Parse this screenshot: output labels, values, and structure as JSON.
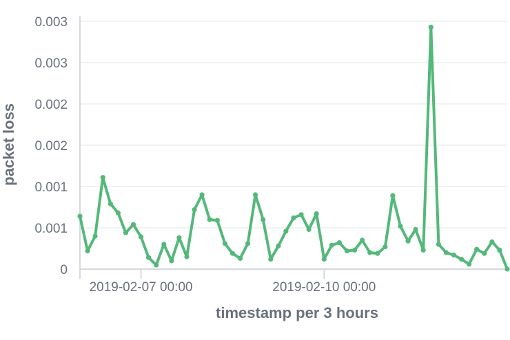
{
  "chart_data": {
    "type": "line",
    "xlabel": "timestamp per 3 hours",
    "ylabel": "packet loss",
    "y_ticks": [
      {
        "value": 0,
        "label": "0"
      },
      {
        "value": 0.0005,
        "label": "0.001"
      },
      {
        "value": 0.001,
        "label": "0.001"
      },
      {
        "value": 0.0015,
        "label": "0.002"
      },
      {
        "value": 0.002,
        "label": "0.002"
      },
      {
        "value": 0.0025,
        "label": "0.003"
      },
      {
        "value": 0.003,
        "label": "0.003"
      }
    ],
    "ylim": [
      0,
      0.003
    ],
    "x_ticks": [
      {
        "value": "2019-02-07 00:00",
        "label": "2019-02-07 00:00"
      },
      {
        "value": "2019-02-10 00:00",
        "label": "2019-02-10 00:00"
      }
    ],
    "xlim": [
      "2019-02-06 00:00",
      "2019-02-13 00:00"
    ],
    "grid": "horizontal",
    "colors": {
      "series": "#54b87a"
    },
    "series": [
      {
        "x": [
          "2019-02-06 00:00",
          "2019-02-06 03:00",
          "2019-02-06 06:00",
          "2019-02-06 09:00",
          "2019-02-06 12:00",
          "2019-02-06 15:00",
          "2019-02-06 18:00",
          "2019-02-06 21:00",
          "2019-02-07 00:00",
          "2019-02-07 03:00",
          "2019-02-07 06:00",
          "2019-02-07 09:00",
          "2019-02-07 12:00",
          "2019-02-07 15:00",
          "2019-02-07 18:00",
          "2019-02-07 21:00",
          "2019-02-08 00:00",
          "2019-02-08 03:00",
          "2019-02-08 06:00",
          "2019-02-08 09:00",
          "2019-02-08 12:00",
          "2019-02-08 15:00",
          "2019-02-08 18:00",
          "2019-02-08 21:00",
          "2019-02-09 00:00",
          "2019-02-09 03:00",
          "2019-02-09 06:00",
          "2019-02-09 09:00",
          "2019-02-09 12:00",
          "2019-02-09 15:00",
          "2019-02-09 18:00",
          "2019-02-09 21:00",
          "2019-02-10 00:00",
          "2019-02-10 03:00",
          "2019-02-10 06:00",
          "2019-02-10 09:00",
          "2019-02-10 12:00",
          "2019-02-10 15:00",
          "2019-02-10 18:00",
          "2019-02-10 21:00",
          "2019-02-11 00:00",
          "2019-02-11 03:00",
          "2019-02-11 06:00",
          "2019-02-11 09:00",
          "2019-02-11 12:00",
          "2019-02-11 15:00",
          "2019-02-11 18:00",
          "2019-02-11 21:00",
          "2019-02-12 00:00",
          "2019-02-12 03:00",
          "2019-02-12 06:00",
          "2019-02-12 09:00",
          "2019-02-12 12:00",
          "2019-02-12 15:00",
          "2019-02-12 18:00",
          "2019-02-12 21:00",
          "2019-02-13 00:00"
        ],
        "y": [
          0.00064,
          0.00022,
          0.0004,
          0.00111,
          0.00079,
          0.00068,
          0.00044,
          0.00054,
          0.00039,
          0.00014,
          5e-05,
          0.0003,
          0.0001,
          0.00038,
          0.00015,
          0.00072,
          0.0009,
          0.0006,
          0.00059,
          0.00031,
          0.00019,
          0.00013,
          0.00031,
          0.0009,
          0.0006,
          0.00012,
          0.00028,
          0.00046,
          0.00062,
          0.00066,
          0.00048,
          0.00067,
          0.00012,
          0.00029,
          0.00032,
          0.00022,
          0.00023,
          0.00035,
          0.0002,
          0.00019,
          0.00027,
          0.00089,
          0.00052,
          0.00034,
          0.00048,
          0.00023,
          0.00293,
          0.0003,
          0.0002,
          0.00017,
          0.00012,
          6e-05,
          0.00024,
          0.00019,
          0.00033,
          0.00023,
          0.0
        ]
      }
    ]
  }
}
